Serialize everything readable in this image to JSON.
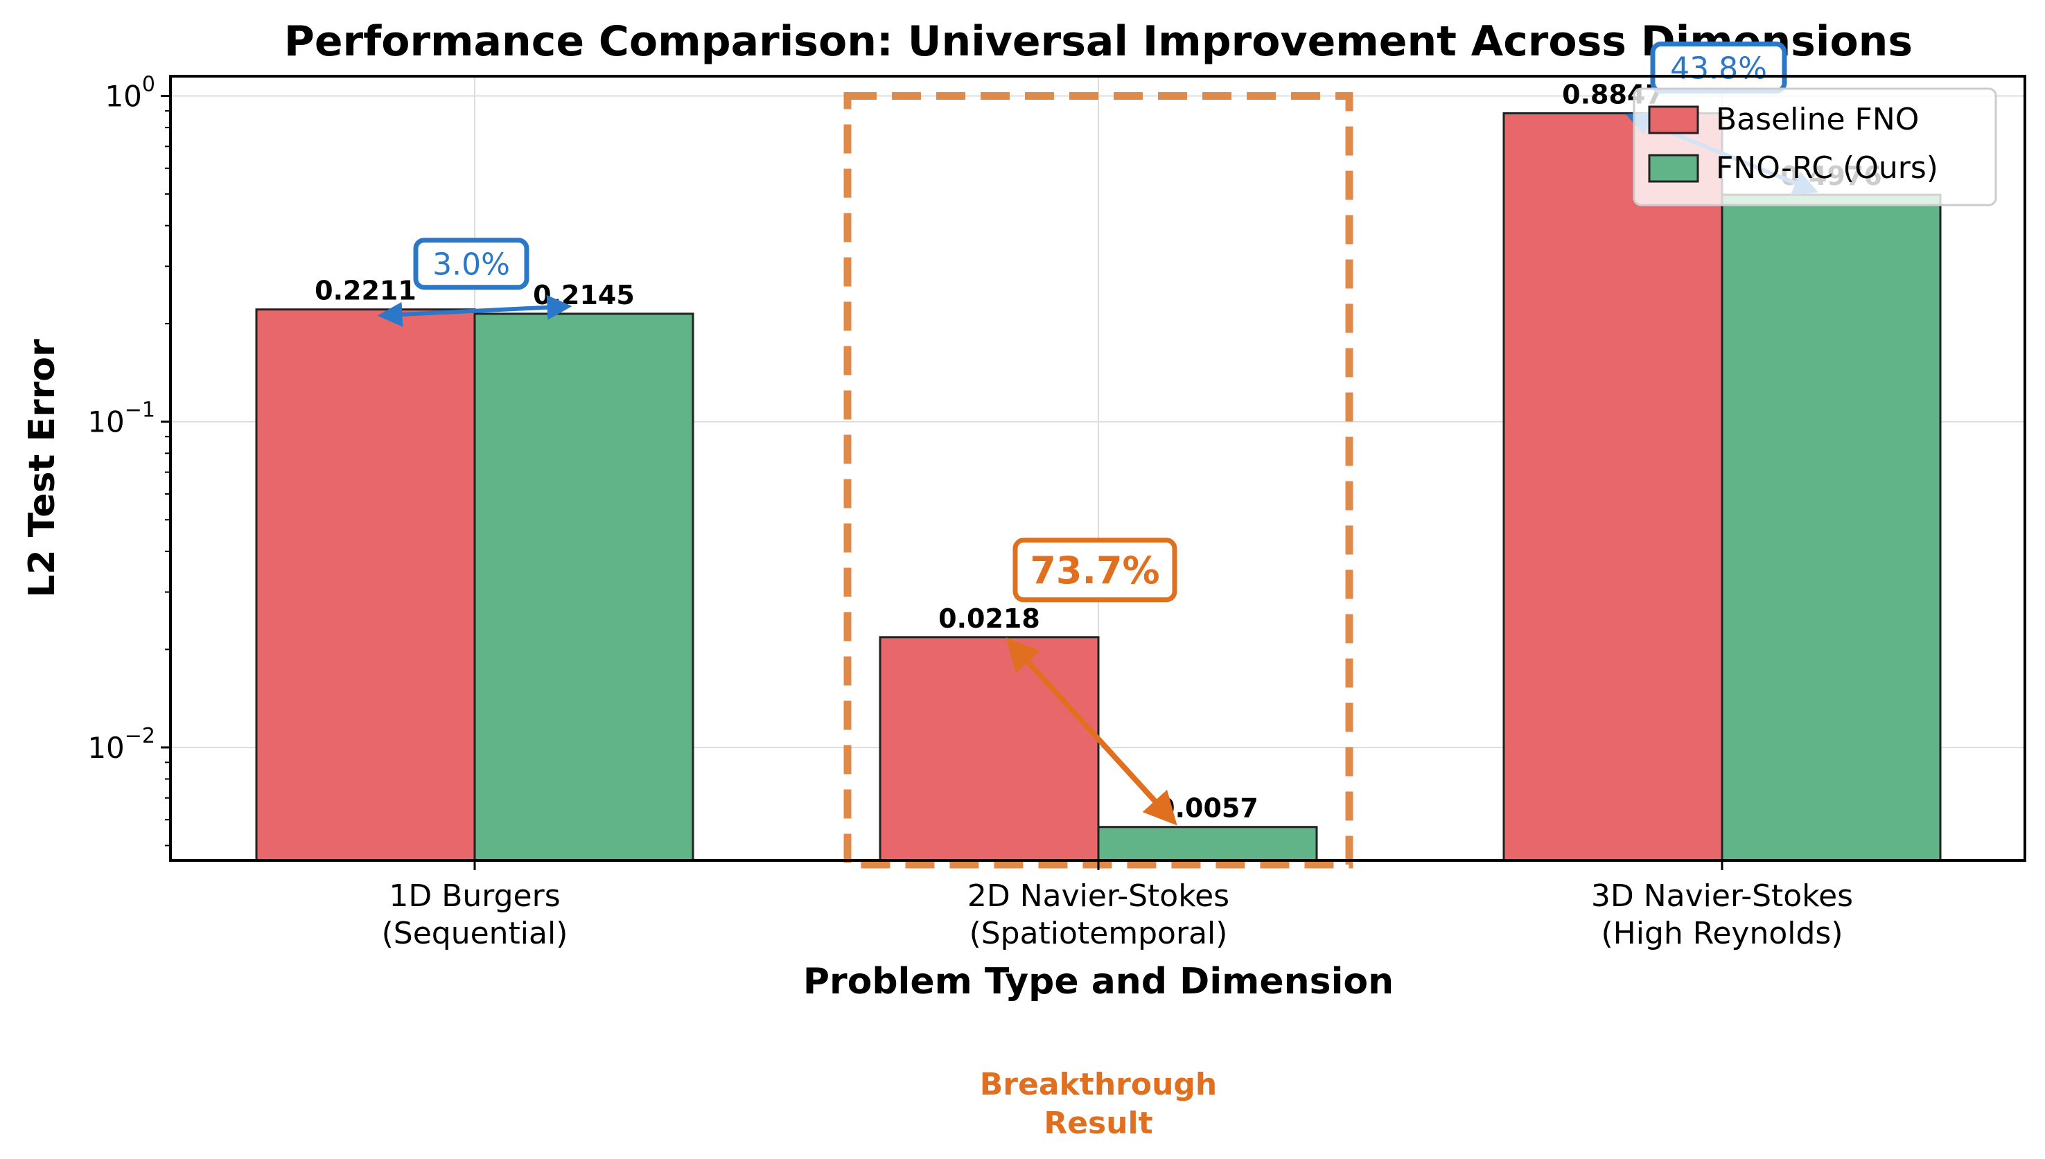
{
  "chart_data": {
    "type": "bar",
    "title": "Performance Comparison: Universal Improvement Across Dimensions",
    "xlabel": "Problem Type and Dimension",
    "ylabel": "L2 Test Error",
    "yscale": "log",
    "ylim": [
      0.0045,
      1.15
    ],
    "y_ticks": [
      {
        "value": 0.01,
        "base": "10",
        "exp": "−2"
      },
      {
        "value": 0.1,
        "base": "10",
        "exp": "−1"
      },
      {
        "value": 1,
        "base": "10",
        "exp": "0"
      }
    ],
    "categories": [
      {
        "line1": "1D Burgers",
        "line2": "(Sequential)"
      },
      {
        "line1": "2D Navier-Stokes",
        "line2": "(Spatiotemporal)"
      },
      {
        "line1": "3D Navier-Stokes",
        "line2": "(High Reynolds)"
      }
    ],
    "series": [
      {
        "name": "Baseline FNO",
        "color": "#e8676b",
        "values": [
          0.2211,
          0.0218,
          0.8847
        ],
        "labels": [
          "0.2211",
          "0.0218",
          "0.8847"
        ]
      },
      {
        "name": "FNO-RC (Ours)",
        "color": "#61b388",
        "values": [
          0.2145,
          0.0057,
          0.4976
        ],
        "labels": [
          "0.2145",
          "0.0057",
          "0.4976"
        ]
      }
    ],
    "improvements": [
      {
        "label": "3.0%",
        "color": "#2b78c8",
        "highlight": false
      },
      {
        "label": "73.7%",
        "color": "#e07020",
        "highlight": true
      },
      {
        "label": "43.8%",
        "color": "#2b78c8",
        "highlight": false
      }
    ],
    "highlight_note": {
      "line1": "Breakthrough",
      "line2": "Result",
      "color": "#e07020"
    },
    "grid": true,
    "legend_position": "top-right"
  }
}
